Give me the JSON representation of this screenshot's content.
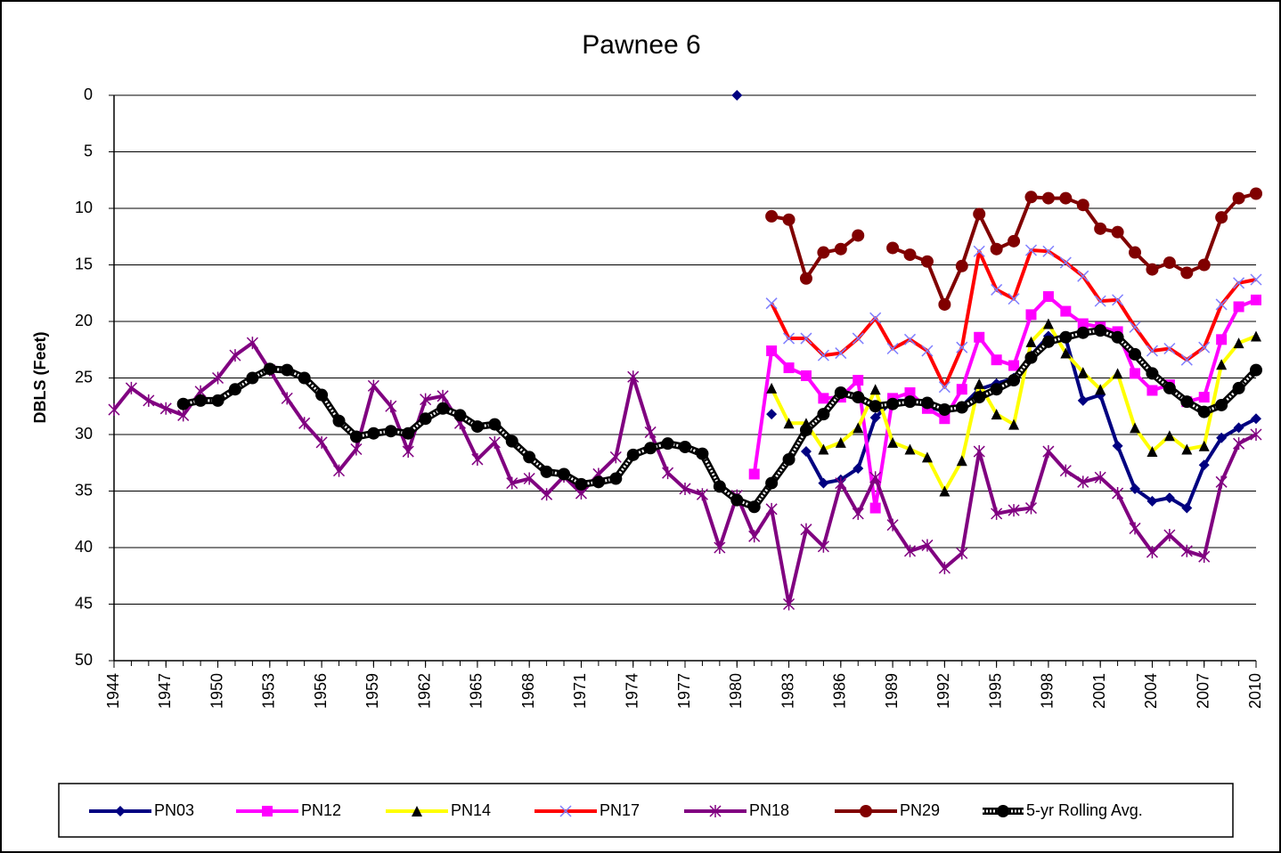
{
  "chart_data": {
    "type": "line",
    "title": "Pawnee 6",
    "y_label": "DBLS (Feet)",
    "y_inverted": true,
    "grid": true,
    "legend": "bottom",
    "x": [
      1944,
      1945,
      1946,
      1947,
      1948,
      1949,
      1950,
      1951,
      1952,
      1953,
      1954,
      1955,
      1956,
      1957,
      1958,
      1959,
      1960,
      1961,
      1962,
      1963,
      1964,
      1965,
      1966,
      1967,
      1968,
      1969,
      1970,
      1971,
      1972,
      1973,
      1974,
      1975,
      1976,
      1977,
      1978,
      1979,
      1980,
      1981,
      1982,
      1983,
      1984,
      1985,
      1986,
      1987,
      1988,
      1989,
      1990,
      1991,
      1992,
      1993,
      1994,
      1995,
      1996,
      1997,
      1998,
      1999,
      2000,
      2001,
      2002,
      2003,
      2004,
      2005,
      2006,
      2007,
      2008,
      2009,
      2010
    ],
    "xlim": [
      1944,
      2010
    ],
    "xticks": [
      1944,
      1947,
      1950,
      1953,
      1956,
      1959,
      1962,
      1965,
      1968,
      1971,
      1974,
      1977,
      1980,
      1983,
      1986,
      1989,
      1992,
      1995,
      1998,
      2001,
      2004,
      2007,
      2010
    ],
    "ylim": [
      0,
      50
    ],
    "yticks": [
      0,
      5,
      10,
      15,
      20,
      25,
      30,
      35,
      40,
      45,
      50
    ],
    "series": [
      {
        "name": "PN03",
        "color": "#000080",
        "marker": "diamond",
        "marker_color": "#000080",
        "values": [
          null,
          null,
          null,
          null,
          null,
          null,
          null,
          null,
          null,
          null,
          null,
          null,
          null,
          null,
          null,
          null,
          null,
          null,
          null,
          null,
          null,
          null,
          null,
          null,
          null,
          null,
          null,
          null,
          null,
          null,
          null,
          null,
          null,
          null,
          null,
          null,
          0,
          null,
          28.2,
          null,
          31.5,
          34.3,
          34,
          33,
          28.5,
          27,
          27,
          27.5,
          28,
          27.5,
          26,
          25.5,
          25,
          23,
          21.3,
          21.5,
          27,
          26.5,
          31,
          34.8,
          35.9,
          35.6,
          36.5,
          32.7,
          30.3,
          29.4,
          28.6
        ]
      },
      {
        "name": "PN12",
        "color": "#ff00ff",
        "marker": "square",
        "marker_color": "#ff00ff",
        "values": [
          null,
          null,
          null,
          null,
          null,
          null,
          null,
          null,
          null,
          null,
          null,
          null,
          null,
          null,
          null,
          null,
          null,
          null,
          null,
          null,
          null,
          null,
          null,
          null,
          null,
          null,
          null,
          null,
          null,
          null,
          null,
          null,
          null,
          null,
          null,
          null,
          null,
          33.5,
          22.6,
          24.1,
          24.8,
          26.8,
          26.7,
          25.2,
          36.5,
          26.8,
          26.3,
          27.7,
          28.6,
          26,
          21.4,
          23.4,
          23.9,
          19.4,
          17.8,
          19.1,
          20.2,
          20.5,
          20.9,
          24.6,
          26.1,
          25.6,
          27.1,
          26.7,
          21.6,
          18.7,
          18.1
        ]
      },
      {
        "name": "PN14",
        "color": "#ffff00",
        "marker": "triangle",
        "marker_color": "#000000",
        "values": [
          null,
          null,
          null,
          null,
          null,
          null,
          null,
          null,
          null,
          null,
          null,
          null,
          null,
          null,
          null,
          null,
          null,
          null,
          null,
          null,
          null,
          null,
          null,
          null,
          null,
          null,
          null,
          null,
          null,
          null,
          null,
          null,
          null,
          null,
          null,
          null,
          null,
          null,
          25.9,
          29,
          29,
          31.3,
          30.7,
          29.4,
          26,
          30.7,
          31.3,
          32,
          35,
          32.3,
          25.5,
          28.2,
          29.1,
          21.8,
          20.2,
          22.8,
          24.5,
          26,
          24.6,
          29.4,
          31.5,
          30.1,
          31.3,
          31,
          23.8,
          21.9,
          21.3
        ]
      },
      {
        "name": "PN17",
        "color": "#ff0000",
        "marker": "x",
        "marker_color": "#7f7fff",
        "values": [
          null,
          null,
          null,
          null,
          null,
          null,
          null,
          null,
          null,
          null,
          null,
          null,
          null,
          null,
          null,
          null,
          null,
          null,
          null,
          null,
          null,
          null,
          null,
          null,
          null,
          null,
          null,
          null,
          null,
          null,
          null,
          null,
          null,
          null,
          null,
          null,
          null,
          null,
          18.4,
          21.5,
          21.5,
          23,
          22.8,
          21.5,
          19.7,
          22.4,
          21.6,
          22.6,
          25.8,
          22.3,
          13.8,
          17.2,
          18,
          13.7,
          13.8,
          14.8,
          16,
          18.2,
          18.1,
          20.5,
          22.6,
          22.4,
          23.4,
          22.3,
          18.5,
          16.6,
          16.3
        ]
      },
      {
        "name": "PN18",
        "color": "#800080",
        "marker": "asterisk",
        "marker_color": "#800080",
        "values": [
          27.8,
          25.9,
          27,
          27.7,
          28.3,
          26.2,
          25,
          23,
          21.9,
          24.3,
          26.8,
          29,
          30.7,
          33.2,
          31.3,
          25.7,
          27.5,
          31.5,
          26.9,
          26.6,
          29,
          32.2,
          30.7,
          34.3,
          33.9,
          35.3,
          33.7,
          35.2,
          33.5,
          32,
          24.9,
          29.8,
          33.4,
          34.8,
          35.3,
          40,
          35.4,
          39,
          36.6,
          45,
          38.4,
          39.9,
          34.3,
          37,
          33.8,
          38,
          40.3,
          39.8,
          41.8,
          40.5,
          31.5,
          37,
          36.7,
          36.5,
          31.5,
          33.2,
          34.2,
          33.8,
          35.2,
          38.3,
          40.4,
          38.9,
          40.3,
          40.8,
          34.2,
          30.8,
          30
        ]
      },
      {
        "name": "PN29",
        "color": "#800000",
        "marker": "circle",
        "marker_color": "#800000",
        "values": [
          null,
          null,
          null,
          null,
          null,
          null,
          null,
          null,
          null,
          null,
          null,
          null,
          null,
          null,
          null,
          null,
          null,
          null,
          null,
          null,
          null,
          null,
          null,
          null,
          null,
          null,
          null,
          null,
          null,
          null,
          null,
          null,
          null,
          null,
          null,
          null,
          null,
          null,
          10.7,
          11,
          16.2,
          13.9,
          13.6,
          12.4,
          null,
          13.5,
          14.1,
          14.7,
          18.5,
          15.1,
          10.5,
          13.6,
          12.9,
          9,
          9.1,
          9.1,
          9.7,
          11.8,
          12.1,
          13.9,
          15.4,
          14.8,
          15.7,
          15,
          10.8,
          9.1,
          8.7
        ]
      },
      {
        "name": "5-yr Rolling  Avg.",
        "color": "#000000",
        "marker": "circle",
        "marker_color": "#000000",
        "pattern": true,
        "values": [
          null,
          null,
          null,
          null,
          27.3,
          27,
          27,
          26,
          25,
          24.2,
          24.3,
          25,
          26.5,
          28.8,
          30.2,
          29.9,
          29.7,
          29.9,
          28.6,
          27.7,
          28.3,
          29.3,
          29.1,
          30.6,
          32,
          33.3,
          33.5,
          34.4,
          34.2,
          33.9,
          31.8,
          31.2,
          30.8,
          31.1,
          31.7,
          34.6,
          35.8,
          36.4,
          34.3,
          32.2,
          29.6,
          28.2,
          26.3,
          26.7,
          27.5,
          27.3,
          27.1,
          27.2,
          27.8,
          27.6,
          26.7,
          26,
          25.2,
          23.2,
          21.8,
          21.4,
          21,
          20.8,
          21.4,
          22.9,
          24.6,
          25.9,
          27.1,
          28,
          27.4,
          25.9,
          24.3
        ]
      }
    ]
  }
}
